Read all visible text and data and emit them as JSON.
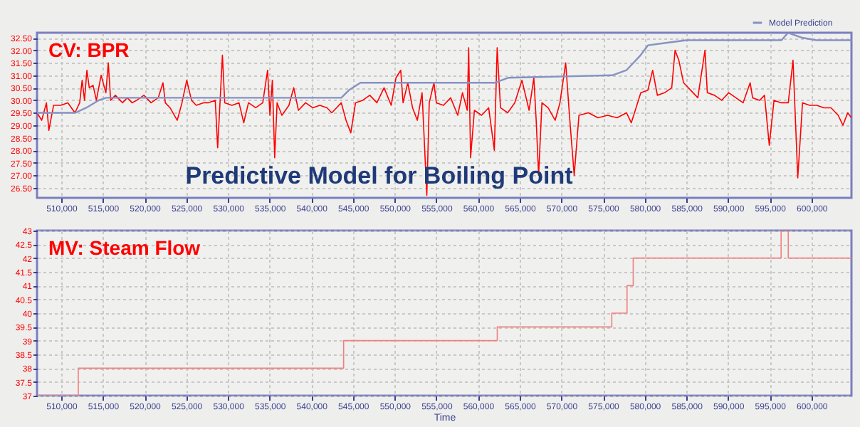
{
  "chart_data": [
    {
      "type": "line",
      "title": "CV: BPR",
      "annotations": [
        "Predictive Model for Boiling Point"
      ],
      "legend": "top right",
      "grid": true,
      "marker": "none",
      "line_style": "solid",
      "xlim": [
        507100,
        604800
      ],
      "xticks": [
        {
          "value": 510000,
          "label": "510,000"
        },
        {
          "value": 515000,
          "label": "515,000"
        },
        {
          "value": 520000,
          "label": "520,000"
        },
        {
          "value": 525000,
          "label": "525,000"
        },
        {
          "value": 530000,
          "label": "530,000"
        },
        {
          "value": 535000,
          "label": "535,000"
        },
        {
          "value": 540000,
          "label": "540,000"
        },
        {
          "value": 545000,
          "label": "545,000"
        },
        {
          "value": 550000,
          "label": "550,000"
        },
        {
          "value": 555000,
          "label": "555,000"
        },
        {
          "value": 560000,
          "label": "560,000"
        },
        {
          "value": 565000,
          "label": "565,000"
        },
        {
          "value": 570000,
          "label": "570,000"
        },
        {
          "value": 575000,
          "label": "575,000"
        },
        {
          "value": 580000,
          "label": "580,000"
        },
        {
          "value": 585000,
          "label": "585,000"
        },
        {
          "value": 590000,
          "label": "590,000"
        },
        {
          "value": 595000,
          "label": "595,000"
        },
        {
          "value": 600000,
          "label": "600,000"
        }
      ],
      "ylim": [
        26.1,
        32.7
      ],
      "yticks": [
        {
          "value": 26.5,
          "label": "26.50"
        },
        {
          "value": 27,
          "label": "27.00"
        },
        {
          "value": 27.5,
          "label": "27.50"
        },
        {
          "value": 28,
          "label": "28.00"
        },
        {
          "value": 28.5,
          "label": "28.50"
        },
        {
          "value": 29,
          "label": "29.00"
        },
        {
          "value": 29.5,
          "label": "29.50"
        },
        {
          "value": 30,
          "label": "30.00"
        },
        {
          "value": 30.5,
          "label": "30.50"
        },
        {
          "value": 31,
          "label": "31.00"
        },
        {
          "value": 31.5,
          "label": "31.50"
        },
        {
          "value": 32,
          "label": "32.00"
        },
        {
          "value": 32.5,
          "label": "32.50"
        }
      ],
      "series": [
        {
          "color": "#ff0000",
          "x": [
            507100,
            507660,
            508230,
            508520,
            509090,
            509940,
            510800,
            511650,
            512220,
            512510,
            512800,
            513080,
            513370,
            513820,
            514220,
            514790,
            515360,
            515650,
            515930,
            516500,
            517360,
            517930,
            518500,
            519070,
            519920,
            520780,
            521640,
            522210,
            522490,
            523060,
            523920,
            524490,
            525060,
            525630,
            526200,
            527060,
            527630,
            528480,
            528770,
            529050,
            529340,
            529620,
            530480,
            531330,
            531900,
            532470,
            533330,
            534180,
            534760,
            535040,
            535330,
            535610,
            535900,
            536470,
            537320,
            537890,
            538460,
            539320,
            540170,
            541030,
            541890,
            542460,
            543030,
            543600,
            544170,
            544740,
            545310,
            546160,
            547020,
            547870,
            548730,
            549590,
            550160,
            550730,
            551010,
            551580,
            552150,
            552720,
            553290,
            553860,
            554150,
            554720,
            555000,
            555860,
            556720,
            557570,
            558140,
            558710,
            558880,
            559110,
            559570,
            560420,
            561280,
            561960,
            562300,
            562700,
            563560,
            564410,
            565270,
            566130,
            566700,
            566980,
            567270,
            567670,
            568410,
            569260,
            569830,
            570520,
            570970,
            571540,
            572110,
            573250,
            574390,
            575540,
            576680,
            577820,
            578390,
            578960,
            579530,
            580380,
            580950,
            581520,
            582380,
            583240,
            583640,
            584090,
            584660,
            585520,
            586370,
            587230,
            587510,
            588370,
            589230,
            590080,
            590940,
            591800,
            592650,
            592940,
            593800,
            594370,
            594940,
            595510,
            596360,
            597220,
            597790,
            598360,
            598930,
            599780,
            600640,
            601500,
            602350,
            603210,
            603780,
            604350,
            604800
          ],
          "values": [
            29.5,
            29.2,
            29.9,
            28.8,
            29.8,
            29.8,
            29.9,
            29.5,
            29.9,
            30.8,
            30.0,
            31.2,
            30.5,
            30.6,
            30.0,
            31.0,
            30.3,
            31.5,
            30.0,
            30.2,
            29.9,
            30.1,
            29.9,
            30.0,
            30.2,
            29.9,
            30.1,
            30.7,
            29.9,
            29.7,
            29.2,
            29.9,
            30.8,
            30.0,
            29.8,
            29.9,
            29.9,
            30.0,
            28.1,
            29.9,
            31.8,
            29.9,
            29.8,
            29.9,
            29.1,
            29.9,
            29.7,
            29.9,
            31.2,
            29.4,
            30.8,
            27.7,
            29.9,
            29.4,
            29.8,
            30.5,
            29.6,
            29.9,
            29.7,
            29.8,
            29.7,
            29.5,
            29.7,
            29.9,
            29.2,
            28.7,
            29.9,
            30.0,
            30.2,
            29.9,
            30.5,
            29.8,
            30.9,
            31.2,
            29.9,
            30.7,
            29.7,
            29.2,
            30.3,
            26.2,
            29.9,
            30.7,
            29.9,
            29.8,
            30.1,
            29.4,
            30.3,
            29.6,
            32.1,
            27.7,
            29.6,
            29.4,
            29.7,
            28.0,
            32.1,
            29.7,
            29.5,
            29.9,
            30.8,
            29.6,
            30.9,
            29.2,
            27.0,
            29.9,
            29.7,
            29.2,
            29.9,
            31.5,
            29.4,
            27.0,
            29.4,
            29.5,
            29.3,
            29.4,
            29.3,
            29.5,
            29.1,
            29.7,
            30.3,
            30.4,
            31.2,
            30.2,
            30.3,
            30.5,
            32.0,
            31.6,
            30.7,
            30.4,
            30.1,
            32.0,
            30.3,
            30.2,
            30.0,
            30.3,
            30.1,
            29.9,
            30.7,
            30.1,
            30.0,
            30.2,
            28.2,
            30.0,
            29.9,
            29.9,
            31.6,
            26.9,
            29.9,
            29.8,
            29.8,
            29.7,
            29.7,
            29.4,
            29.0,
            29.5,
            29.3
          ]
        },
        {
          "name": "Model Prediction",
          "color": "#8592c4",
          "x": [
            507100,
            511700,
            513000,
            514500,
            515400,
            543600,
            544500,
            545900,
            562000,
            563600,
            576100,
            577800,
            579500,
            580400,
            582700,
            585000,
            596400,
            597200,
            598900,
            600600,
            604800
          ],
          "values": [
            29.5,
            29.5,
            29.7,
            30.0,
            30.1,
            30.1,
            30.4,
            30.7,
            30.7,
            30.9,
            31.0,
            31.2,
            31.8,
            32.2,
            32.3,
            32.4,
            32.4,
            32.7,
            32.5,
            32.4,
            32.4
          ]
        }
      ]
    },
    {
      "type": "step",
      "title": "MV: Steam Flow",
      "xlabel": "Time",
      "grid": true,
      "marker": "none",
      "line_style": "solid",
      "xlim": [
        507100,
        604800
      ],
      "xticks": [
        {
          "value": 510000,
          "label": "510,000"
        },
        {
          "value": 515000,
          "label": "515,000"
        },
        {
          "value": 520000,
          "label": "520,000"
        },
        {
          "value": 525000,
          "label": "525,000"
        },
        {
          "value": 530000,
          "label": "530,000"
        },
        {
          "value": 535000,
          "label": "535,000"
        },
        {
          "value": 540000,
          "label": "540,000"
        },
        {
          "value": 545000,
          "label": "545,000"
        },
        {
          "value": 550000,
          "label": "550,000"
        },
        {
          "value": 555000,
          "label": "555,000"
        },
        {
          "value": 560000,
          "label": "560,000"
        },
        {
          "value": 565000,
          "label": "565,000"
        },
        {
          "value": 570000,
          "label": "570,000"
        },
        {
          "value": 575000,
          "label": "575,000"
        },
        {
          "value": 580000,
          "label": "580,000"
        },
        {
          "value": 585000,
          "label": "585,000"
        },
        {
          "value": 590000,
          "label": "590,000"
        },
        {
          "value": 595000,
          "label": "595,000"
        },
        {
          "value": 600000,
          "label": "600,000"
        }
      ],
      "ylim": [
        37,
        43
      ],
      "yticks": [
        37,
        37.5,
        38,
        38.5,
        39,
        39.5,
        40,
        40.5,
        41,
        41.5,
        42,
        42.5,
        43
      ],
      "series": [
        {
          "color": "#f08080",
          "x": [
            507100,
            512050,
            543880,
            562310,
            576050,
            577880,
            578620,
            596360,
            597220,
            604800
          ],
          "values": [
            37,
            38,
            39,
            39.5,
            40,
            41,
            42,
            43,
            42,
            42
          ]
        }
      ]
    }
  ]
}
